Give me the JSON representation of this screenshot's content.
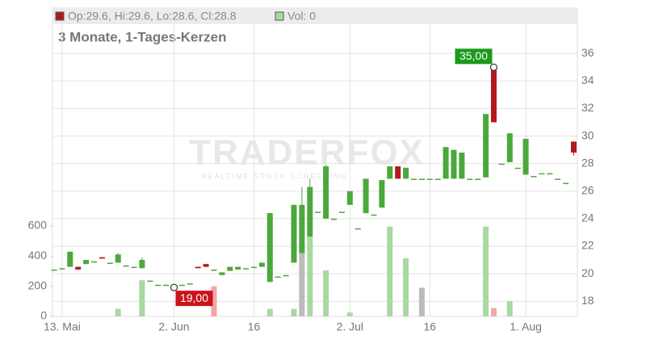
{
  "chart_data": {
    "type": "candlestick",
    "subtitle": "3 Monate, 1-Tages-Kerzen",
    "legend_ohlc": "Op:29.6, Hi:29.6, Lo:28.6, Cl:28.8",
    "legend_volume": "Vol: 0",
    "watermark": "TRADERFOX",
    "watermark_sub": "REALTIME STOCK SCREENING",
    "categories": [
      null,
      "13. Mai",
      null,
      null,
      null,
      null,
      null,
      null,
      null,
      null,
      null,
      null,
      null,
      null,
      null,
      "2. Jun",
      null,
      null,
      null,
      null,
      null,
      null,
      null,
      null,
      null,
      "16",
      null,
      null,
      null,
      null,
      null,
      null,
      null,
      null,
      null,
      null,
      null,
      "2. Jul",
      null,
      null,
      null,
      null,
      null,
      null,
      null,
      null,
      null,
      "16",
      null,
      null,
      null,
      null,
      null,
      null,
      null,
      null,
      null,
      null,
      null,
      "1. Aug",
      null,
      null,
      null,
      null,
      null,
      null
    ],
    "open": [
      20.3,
      20.4,
      20.5,
      20.5,
      20.7,
      20.9,
      21.2,
      20.8,
      20.8,
      20.6,
      20.5,
      20.4,
      19.5,
      19.2,
      19.2,
      19.1,
      19.2,
      19.3,
      20.5,
      20.7,
      20.3,
      19.9,
      20.2,
      20.3,
      20.4,
      20.5,
      20.5,
      19.4,
      19.8,
      19.9,
      20.8,
      21.5,
      22.7,
      24.5,
      24.0,
      24.0,
      24.5,
      25.0,
      23.3,
      24.4,
      24.3,
      24.8,
      26.9,
      27.8,
      26.9,
      26.9,
      26.9,
      26.9,
      26.9,
      26.9,
      26.9,
      26.9,
      26.9,
      26.9,
      27.0,
      35.0,
      28.0,
      28.1,
      27.7,
      27.2,
      27.1,
      27.3,
      27.3,
      26.9,
      26.6,
      29.6
    ],
    "high": [
      20.3,
      20.4,
      21.6,
      20.5,
      21.0,
      20.9,
      21.2,
      20.8,
      21.5,
      20.6,
      20.5,
      21.2,
      19.5,
      19.2,
      19.2,
      19.1,
      19.2,
      19.3,
      20.5,
      20.7,
      20.3,
      20.1,
      20.5,
      20.5,
      20.4,
      20.5,
      20.8,
      24.4,
      19.8,
      19.9,
      25.0,
      26.3,
      26.9,
      24.5,
      27.9,
      24.0,
      24.5,
      26.0,
      23.3,
      26.9,
      24.3,
      26.8,
      27.8,
      27.8,
      27.7,
      26.9,
      26.9,
      26.9,
      26.9,
      29.2,
      29.0,
      28.8,
      26.9,
      26.9,
      31.6,
      35.0,
      28.0,
      30.2,
      27.7,
      29.8,
      27.1,
      27.3,
      27.3,
      26.9,
      26.6,
      29.6
    ],
    "low": [
      20.3,
      20.4,
      20.5,
      20.3,
      20.7,
      20.9,
      21.1,
      20.8,
      20.8,
      20.6,
      20.5,
      20.4,
      19.5,
      19.2,
      19.2,
      19.0,
      19.2,
      19.3,
      20.4,
      20.5,
      20.3,
      19.9,
      20.2,
      20.3,
      20.4,
      20.5,
      20.5,
      19.4,
      19.8,
      19.9,
      20.8,
      21.5,
      22.7,
      24.5,
      24.0,
      24.0,
      24.5,
      25.0,
      23.3,
      24.4,
      24.3,
      24.8,
      26.9,
      26.9,
      26.9,
      26.9,
      26.9,
      26.9,
      26.9,
      26.9,
      26.9,
      26.9,
      26.9,
      26.9,
      27.0,
      31.0,
      28.0,
      28.1,
      27.7,
      27.2,
      27.1,
      27.3,
      27.3,
      26.9,
      26.6,
      28.6
    ],
    "close": [
      20.3,
      20.4,
      21.6,
      20.3,
      21.0,
      20.9,
      21.1,
      20.8,
      21.4,
      20.6,
      20.5,
      21.0,
      19.5,
      19.2,
      19.2,
      19.0,
      19.2,
      19.3,
      20.4,
      20.5,
      20.3,
      20.1,
      20.5,
      20.5,
      20.4,
      20.5,
      20.8,
      24.4,
      19.8,
      19.9,
      25.0,
      25.0,
      26.3,
      24.5,
      27.8,
      24.0,
      24.5,
      26.0,
      23.3,
      26.9,
      24.3,
      26.8,
      27.8,
      26.9,
      27.7,
      26.9,
      26.9,
      26.9,
      26.9,
      29.2,
      29.0,
      28.8,
      26.9,
      26.9,
      31.6,
      31.0,
      28.0,
      30.2,
      27.7,
      29.8,
      27.1,
      27.3,
      27.3,
      26.9,
      26.6,
      28.8
    ],
    "up_color": "#4ca83c",
    "down_color": "#b3191c",
    "volume": [
      0,
      0,
      0,
      0,
      0,
      0,
      0,
      0,
      50,
      0,
      0,
      240,
      0,
      0,
      0,
      0,
      0,
      0,
      0,
      0,
      200,
      0,
      0,
      0,
      0,
      0,
      0,
      50,
      0,
      0,
      50,
      420,
      535,
      0,
      305,
      0,
      0,
      25,
      0,
      0,
      0,
      0,
      595,
      0,
      385,
      0,
      190,
      0,
      0,
      0,
      0,
      0,
      0,
      0,
      595,
      55,
      0,
      100,
      0,
      0,
      0,
      0,
      0,
      0,
      0,
      0
    ],
    "volume_colors": [
      "#a9d9a1",
      "#a9d9a1",
      "#a9d9a1",
      "#a9d9a1",
      "#a9d9a1",
      "#a9d9a1",
      "#a9d9a1",
      "#a9d9a1",
      "#a9d9a1",
      "#a9d9a1",
      "#a9d9a1",
      "#a9d9a1",
      "#a9d9a1",
      "#a9d9a1",
      "#a9d9a1",
      "#a9d9a1",
      "#a9d9a1",
      "#a9d9a1",
      "#a9d9a1",
      "#a9d9a1",
      "#f3a6a8",
      "#a9d9a1",
      "#a9d9a1",
      "#a9d9a1",
      "#a9d9a1",
      "#a9d9a1",
      "#a9d9a1",
      "#a9d9a1",
      "#a9d9a1",
      "#a9d9a1",
      "#a9d9a1",
      "#bbbbbb",
      "#a9d9a1",
      "#a9d9a1",
      "#a9d9a1",
      "#a9d9a1",
      "#a9d9a1",
      "#a9d9a1",
      "#a9d9a1",
      "#a9d9a1",
      "#a9d9a1",
      "#a9d9a1",
      "#a9d9a1",
      "#a9d9a1",
      "#a9d9a1",
      "#a9d9a1",
      "#bbbbbb",
      "#a9d9a1",
      "#a9d9a1",
      "#a9d9a1",
      "#a9d9a1",
      "#a9d9a1",
      "#a9d9a1",
      "#a9d9a1",
      "#a9d9a1",
      "#f3a6a8",
      "#a9d9a1",
      "#a9d9a1",
      "#a9d9a1",
      "#a9d9a1",
      "#a9d9a1",
      "#a9d9a1",
      "#a9d9a1",
      "#a9d9a1",
      "#a9d9a1",
      "#a9d9a1"
    ],
    "ylim": [
      16.9,
      39.3
    ],
    "yticks": [
      18,
      20,
      22,
      24,
      26,
      28,
      30,
      32,
      34,
      36
    ],
    "y2lim": [
      0,
      2045
    ],
    "y2ticks": [
      0,
      200,
      400,
      600
    ],
    "annotations": [
      {
        "label": "35,00",
        "value": 35.0,
        "kind": "high",
        "color": "#1a9a1a"
      },
      {
        "label": "19,00",
        "value": 19.0,
        "kind": "low",
        "color": "#c8141a"
      }
    ],
    "grid": true
  }
}
